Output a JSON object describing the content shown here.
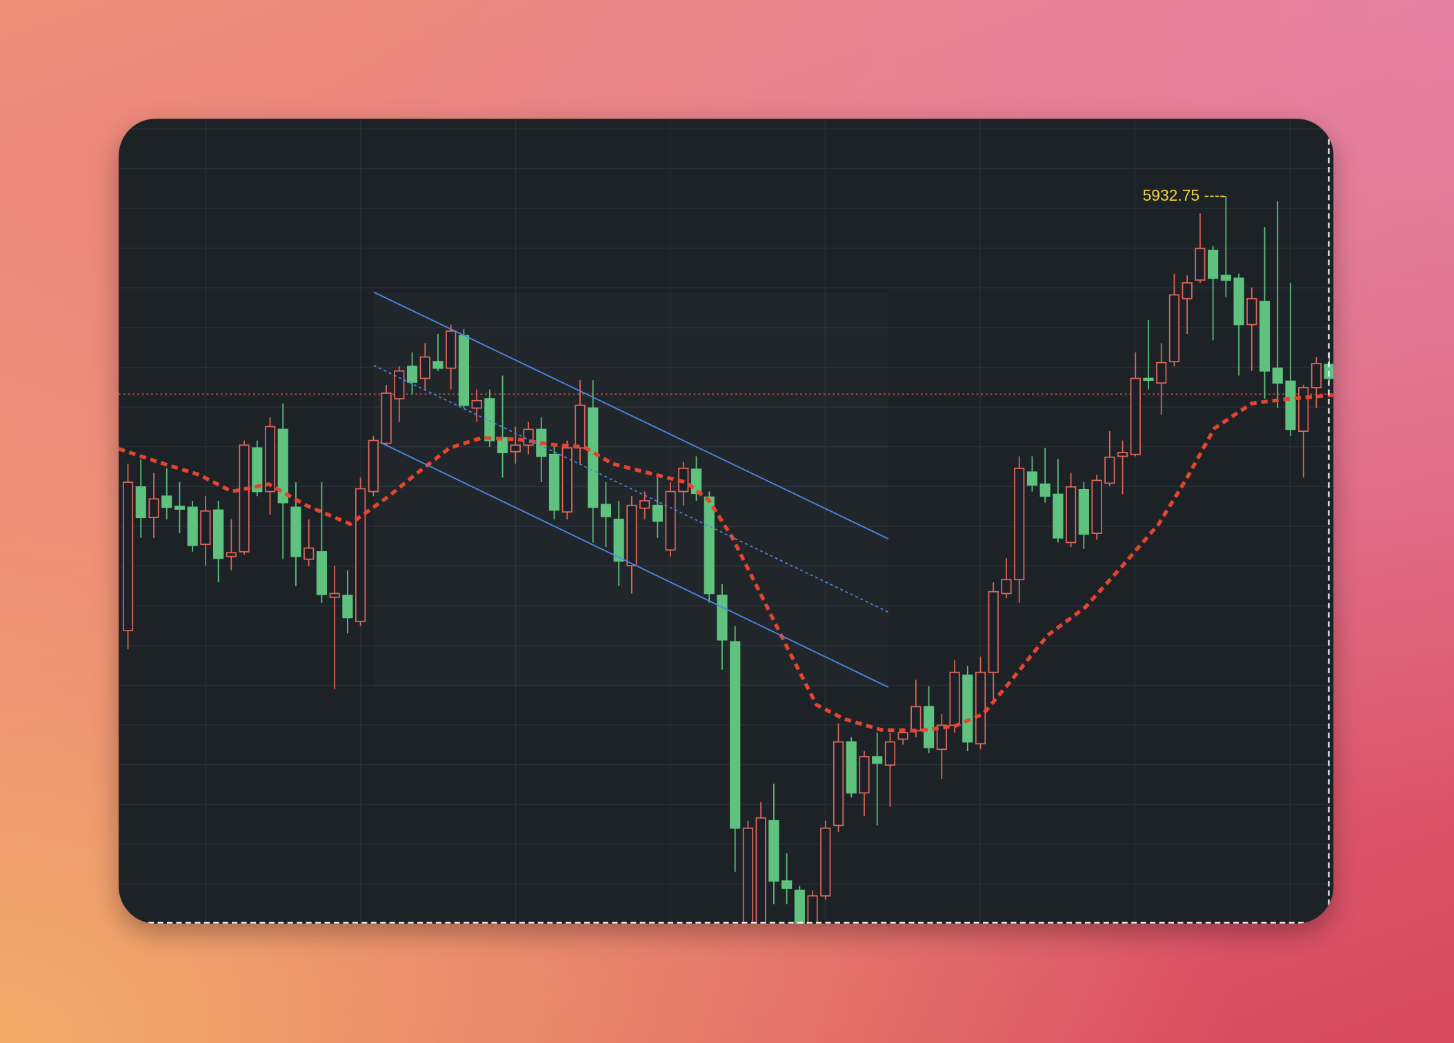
{
  "chart_data": {
    "type": "candlestick",
    "open": [
      5464.75,
      5619.75,
      5586.75,
      5609.75,
      5598.75,
      5597.75,
      5557.75,
      5594.75,
      5544.75,
      5549.75,
      5661.75,
      5614.75,
      5681.75,
      5597.75,
      5541.75,
      5549.75,
      5500.75,
      5502.75,
      5474.75,
      5614.75,
      5666.75,
      5714.75,
      5749.75,
      5736.75,
      5754.75,
      5747.75,
      5782.75,
      5704.75,
      5714.75,
      5672.75,
      5657.75,
      5664.75,
      5681.75,
      5654.75,
      5592.75,
      5661.75,
      5704.75,
      5600.75,
      5584.75,
      5534.75,
      5596.75,
      5599.75,
      5551.75,
      5614.75,
      5638.75,
      5608.75,
      5502.75,
      5452.75,
      5134.75,
      5144.75,
      5259.75,
      5194.75,
      5184.75,
      5144.75,
      5178.75,
      5254.75,
      5344.75,
      5289.75,
      5328.75,
      5319.75,
      5347.75,
      5356.75,
      5382.75,
      5336.75,
      5362.75,
      5416.75,
      5342.75,
      5419.75,
      5504.75,
      5519.75,
      5635.75,
      5622.75,
      5611.75,
      5559.75,
      5616.75,
      5569.75,
      5623.75,
      5652.75,
      5654.75,
      5736.75,
      5731.75,
      5754.75,
      5822.75,
      5842.75,
      5874.75,
      5847.75,
      5844.75,
      5794.75,
      5819.75,
      5747.75,
      5733.75,
      5679.75,
      5726.75,
      5751.75
    ],
    "high": [
      5644.75,
      5649.75,
      5634.75,
      5639.75,
      5624.75,
      5604.75,
      5609.75,
      5604.75,
      5584.75,
      5669.75,
      5669.75,
      5694.75,
      5709.75,
      5624.75,
      5584.75,
      5624.75,
      5534.75,
      5529.75,
      5629.75,
      5674.75,
      5729.75,
      5749.75,
      5764.75,
      5774.75,
      5784.75,
      5794.75,
      5789.75,
      5724.75,
      5724.75,
      5739.75,
      5684.75,
      5689.75,
      5694.75,
      5664.75,
      5669.75,
      5734.75,
      5734.75,
      5624.75,
      5604.75,
      5609.75,
      5614.75,
      5629.75,
      5624.75,
      5646.75,
      5652.75,
      5614.75,
      5514.75,
      5469.75,
      5259.75,
      5279.75,
      5299.75,
      5224.75,
      5189.75,
      5184.75,
      5259.75,
      5364.75,
      5349.75,
      5334.75,
      5354.75,
      5354.75,
      5359.75,
      5411.75,
      5404.75,
      5374.75,
      5432.75,
      5426.75,
      5436.75,
      5516.75,
      5542.75,
      5652.75,
      5652.75,
      5661.75,
      5649.75,
      5634.75,
      5624.75,
      5632.75,
      5679.75,
      5669.75,
      5764.75,
      5799.75,
      5774.75,
      5849.75,
      5847.75,
      5914.75,
      5879.75,
      5932.75,
      5849.75,
      5834.75,
      5899.75,
      5927.75,
      5839.75,
      5729.75,
      5759.75,
      5764.75
    ],
    "low": [
      5444.75,
      5564.75,
      5564.75,
      5584.75,
      5569.75,
      5549.75,
      5534.75,
      5516.75,
      5529.75,
      5546.75,
      5609.75,
      5589.75,
      5541.75,
      5512.75,
      5534.75,
      5494.75,
      5401.75,
      5461.75,
      5469.75,
      5609.75,
      5664.75,
      5689.75,
      5719.75,
      5724.75,
      5744.75,
      5724.75,
      5704.75,
      5689.75,
      5662.75,
      5629.75,
      5644.75,
      5654.75,
      5624.75,
      5584.75,
      5584.75,
      5644.75,
      5559.75,
      5554.75,
      5512.75,
      5504.75,
      5584.75,
      5564.75,
      5544.75,
      5599.75,
      5604.75,
      5494.75,
      5422.75,
      5204.75,
      5114.75,
      5124.75,
      5169.75,
      5169.75,
      5134.75,
      5139.75,
      5174.75,
      5247.75,
      5284.75,
      5264.75,
      5254.75,
      5274.75,
      5341.75,
      5349.75,
      5332.75,
      5304.75,
      5354.75,
      5334.75,
      5336.75,
      5389.75,
      5499.75,
      5494.75,
      5614.75,
      5602.75,
      5559.75,
      5554.75,
      5552.75,
      5562.75,
      5620.75,
      5611.75,
      5652.75,
      5724.75,
      5697.75,
      5749.75,
      5784.75,
      5839.75,
      5777.75,
      5824.75,
      5739.75,
      5744.75,
      5714.75,
      5704.75,
      5674.75,
      5629.75,
      5704.75,
      5734.75
    ],
    "close": [
      5624.75,
      5586.75,
      5606.75,
      5597.75,
      5595.75,
      5556.75,
      5593.75,
      5542.75,
      5548.75,
      5664.75,
      5614.75,
      5684.75,
      5602.75,
      5544.75,
      5553.75,
      5503.75,
      5504.75,
      5478.75,
      5617.75,
      5669.75,
      5720.75,
      5744.75,
      5732.75,
      5759.75,
      5747.75,
      5787.75,
      5707.75,
      5712.75,
      5669.75,
      5656.75,
      5664.75,
      5681.75,
      5652.75,
      5594.75,
      5661.75,
      5707.75,
      5597.75,
      5587.75,
      5539.75,
      5599.75,
      5604.75,
      5582.75,
      5614.75,
      5639.75,
      5612.75,
      5504.75,
      5454.75,
      5251.75,
      5251.75,
      5262.75,
      5194.75,
      5186.75,
      5144.75,
      5178.75,
      5251.75,
      5344.75,
      5289.75,
      5328.75,
      5321.75,
      5344.75,
      5354.75,
      5382.75,
      5338.75,
      5362.75,
      5419.75,
      5344.75,
      5419.75,
      5506.75,
      5519.75,
      5639.75,
      5621.75,
      5609.75,
      5564.75,
      5619.75,
      5568.75,
      5626.75,
      5651.75,
      5656.75,
      5736.75,
      5734.75,
      5753.75,
      5826.75,
      5839.75,
      5876.75,
      5844.75,
      5842.75,
      5794.75,
      5822.75,
      5744.75,
      5731.75,
      5681.75,
      5726.75,
      5752.75,
      5736.75
    ],
    "up_color": "#e0675a",
    "down_color": "#5fc27e",
    "moving_average": {
      "color": "#e5452f",
      "x": [
        -0.72,
        2.3,
        5.53,
        8.04,
        10.9,
        13.8,
        17.2,
        20.2,
        22.4,
        24.9,
        27.4,
        30.3,
        33.2,
        35.3,
        37.5,
        40.3,
        43.2,
        45,
        46.8,
        48.96,
        51.1,
        53.3,
        55.4,
        58.3,
        61.2,
        64,
        66.2,
        68.3,
        71.2,
        74.1,
        77,
        79.8,
        82,
        84.1,
        87,
        89.9,
        93.3
      ],
      "values": [
        5660.75,
        5646.75,
        5632.75,
        5614.75,
        5622.75,
        5599.75,
        5579.75,
        5609.75,
        5634.75,
        5661.75,
        5672.75,
        5670.75,
        5664.75,
        5662.75,
        5644.75,
        5634.75,
        5624.75,
        5604.75,
        5564.75,
        5504.75,
        5444.75,
        5384.75,
        5369.75,
        5357.75,
        5356.75,
        5361.75,
        5374.75,
        5409.75,
        5459.75,
        5489.75,
        5534.75,
        5579.75,
        5629.75,
        5682.75,
        5709.75,
        5714.75,
        5718.75
      ]
    },
    "high_marker": {
      "value": 5932.75,
      "label": "5932.75 ----",
      "color": "#f2d23c"
    },
    "ylim": [
      5148.75,
      6016.75
    ]
  }
}
